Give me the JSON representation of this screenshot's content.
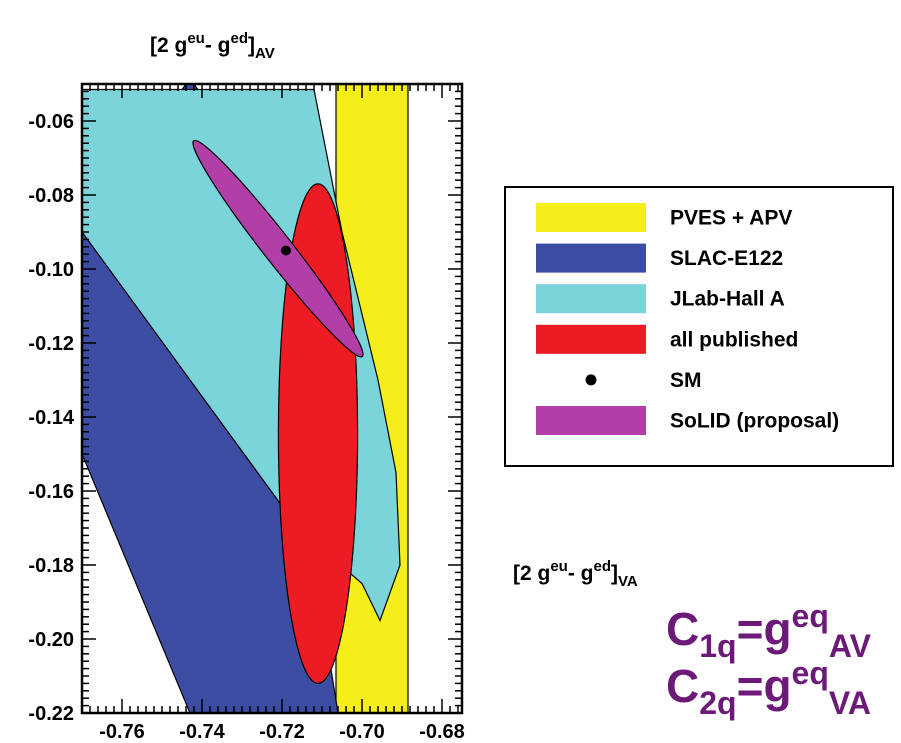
{
  "chart_data": {
    "type": "scatter",
    "ylabel": {
      "main": "[2 g",
      "sup1": "eu",
      "mid": "- g",
      "sup2": "ed",
      "end": "]",
      "sub": "AV"
    },
    "xlabel": {
      "main": "[2 g",
      "sup1": "eu",
      "mid": "- g",
      "sup2": "ed",
      "end": "]",
      "sub": "VA"
    },
    "xlim": [
      -0.77,
      -0.675
    ],
    "ylim": [
      -0.22,
      -0.05
    ],
    "xticks": [
      -0.76,
      -0.74,
      -0.72,
      -0.7,
      -0.68
    ],
    "xtick_labels": [
      "-0.76",
      "-0.74",
      "-0.72",
      "-0.70",
      "-0.68"
    ],
    "yticks": [
      -0.06,
      -0.08,
      -0.1,
      -0.12,
      -0.14,
      -0.16,
      -0.18,
      -0.2,
      -0.22
    ],
    "ytick_labels": [
      "-0.06",
      "-0.08",
      "-0.10",
      "-0.12",
      "-0.14",
      "-0.16",
      "-0.18",
      "-0.20",
      "-0.22"
    ],
    "grid": false,
    "legend_position": "right",
    "series": [
      {
        "name": "PVES + APV",
        "color": "#f5ee1a",
        "shape": "band",
        "x_range": [
          -0.7065,
          -0.6885
        ]
      },
      {
        "name": "SLAC-E122",
        "color": "#3d4da3",
        "shape": "polygon",
        "points": [
          [
            -0.77,
            -0.09
          ],
          [
            -0.744,
            -0.05
          ],
          [
            -0.742,
            -0.05
          ],
          [
            -0.728,
            -0.072
          ],
          [
            -0.706,
            -0.22
          ],
          [
            -0.743,
            -0.22
          ],
          [
            -0.77,
            -0.15
          ]
        ]
      },
      {
        "name": "JLab-Hall A",
        "color": "#7ad4d9",
        "shape": "polygon",
        "points": [
          [
            -0.77,
            -0.0515
          ],
          [
            -0.712,
            -0.0515
          ],
          [
            -0.705,
            -0.09
          ],
          [
            -0.696,
            -0.13
          ],
          [
            -0.6915,
            -0.155
          ],
          [
            -0.6905,
            -0.18
          ],
          [
            -0.6955,
            -0.195
          ],
          [
            -0.7,
            -0.185
          ],
          [
            -0.716,
            -0.17
          ],
          [
            -0.77,
            -0.09
          ]
        ]
      },
      {
        "name": "all published",
        "color": "#ed1c24",
        "shape": "ellipse",
        "center": [
          -0.711,
          -0.1445
        ],
        "semi_axes": [
          0.0099,
          0.0675
        ]
      },
      {
        "name": "SoLID (proposal)",
        "color": "#b23ea8",
        "shape": "ellipse",
        "center": [
          -0.721,
          -0.0945
        ],
        "semi_axes": [
          0.0036,
          0.037
        ],
        "rotation_deg": -38
      },
      {
        "name": "SM",
        "color": "#000000",
        "shape": "point",
        "x": -0.719,
        "y": -0.095
      }
    ],
    "legend": [
      {
        "label": "PVES + APV",
        "color": "#f5ee1a",
        "marker": "box"
      },
      {
        "label": "SLAC-E122",
        "color": "#3d4da3",
        "marker": "box"
      },
      {
        "label": "JLab-Hall A",
        "color": "#7ad4d9",
        "marker": "box"
      },
      {
        "label": "all published",
        "color": "#ed1c24",
        "marker": "box"
      },
      {
        "label": "SM",
        "color": "#000000",
        "marker": "dot"
      },
      {
        "label": "SoLID (proposal)",
        "color": "#b23ea8",
        "marker": "box"
      }
    ]
  },
  "formulas": [
    {
      "base": "C",
      "sub": "1q",
      "eq": "=g",
      "sup": "eq",
      "sub2": "AV"
    },
    {
      "base": "C",
      "sub": "2q",
      "eq": "=g",
      "sup": "eq",
      "sub2": "VA"
    }
  ]
}
